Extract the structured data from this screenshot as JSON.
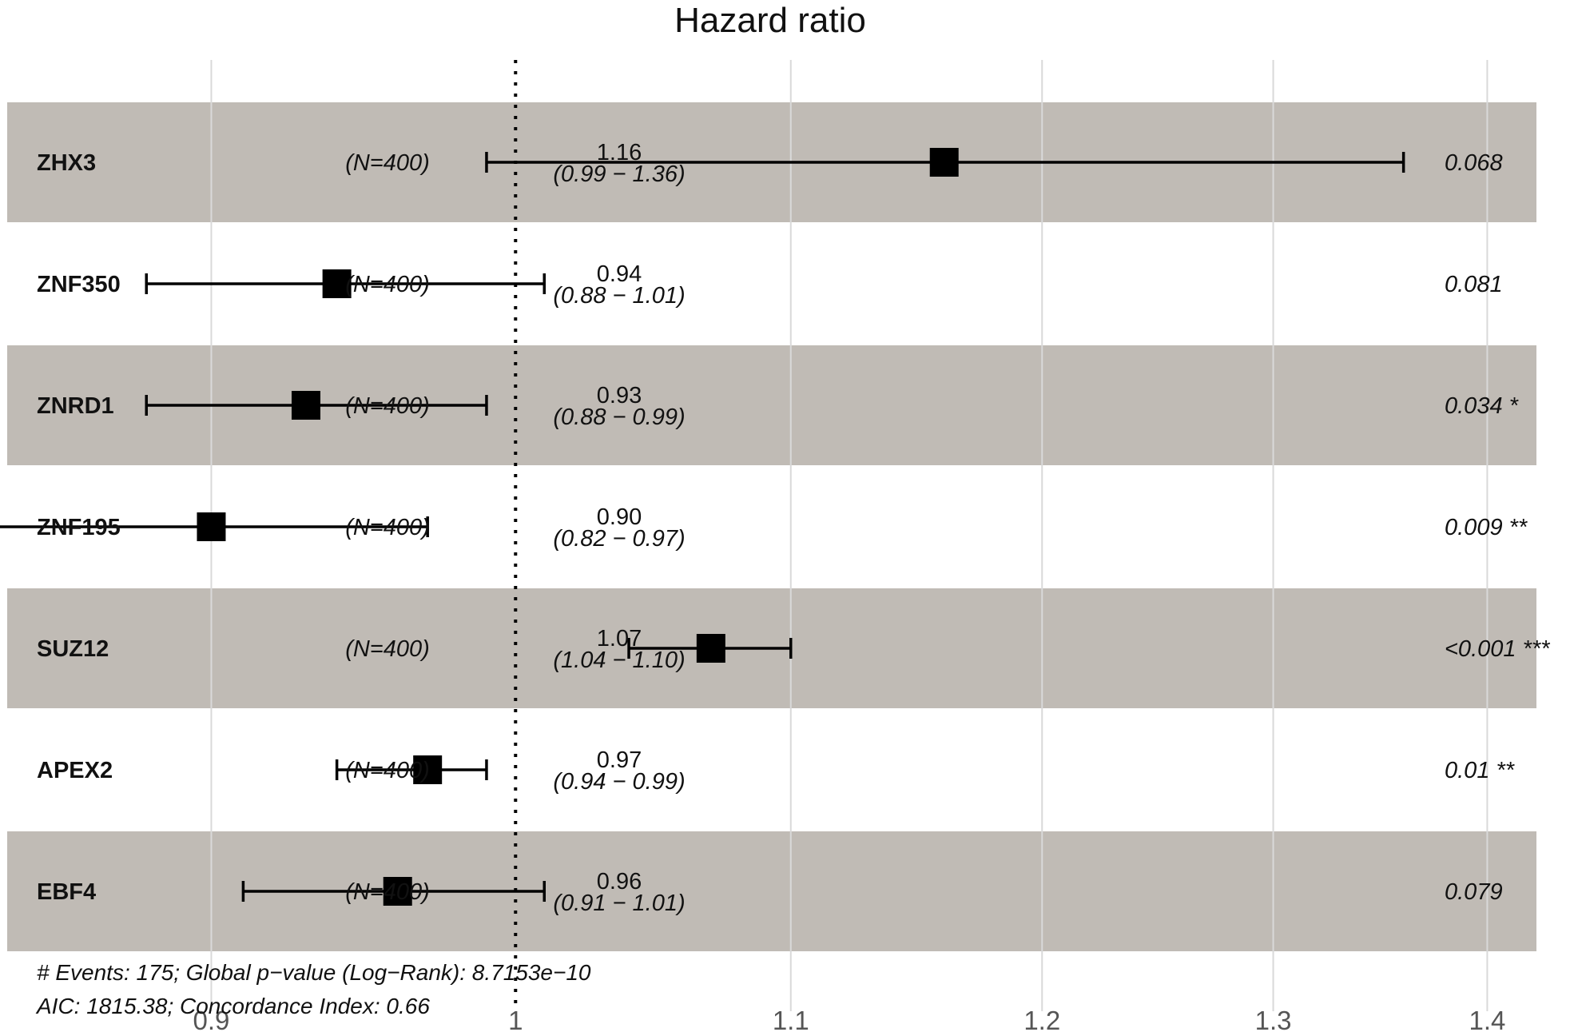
{
  "chart_data": {
    "type": "forest",
    "title": "Hazard ratio",
    "xscale": "log",
    "xlim": [
      0.8365,
      1.4407
    ],
    "reference_line": 1,
    "grid": true,
    "x_ticks": [
      {
        "value": 0.9,
        "label": "0.9"
      },
      {
        "value": 1.0,
        "label": "1"
      },
      {
        "value": 1.1,
        "label": "1.1"
      },
      {
        "value": 1.2,
        "label": "1.2"
      },
      {
        "value": 1.3,
        "label": "1.3"
      },
      {
        "value": 1.4,
        "label": "1.4"
      }
    ],
    "rows": [
      {
        "gene": "ZHX3",
        "n": "(N=400)",
        "hr": 1.16,
        "hr_text": "1.16",
        "lower": 0.99,
        "upper": 1.36,
        "ci_text": "(0.99 − 1.36)",
        "p_text": "0.068",
        "shaded": true
      },
      {
        "gene": "ZNF350",
        "n": "(N=400)",
        "hr": 0.94,
        "hr_text": "0.94",
        "lower": 0.88,
        "upper": 1.01,
        "ci_text": "(0.88 − 1.01)",
        "p_text": "0.081",
        "shaded": false
      },
      {
        "gene": "ZNRD1",
        "n": "(N=400)",
        "hr": 0.93,
        "hr_text": "0.93",
        "lower": 0.88,
        "upper": 0.99,
        "ci_text": "(0.88 − 0.99)",
        "p_text": "0.034 *",
        "shaded": true
      },
      {
        "gene": "ZNF195",
        "n": "(N=400)",
        "hr": 0.9,
        "hr_text": "0.90",
        "lower": 0.82,
        "upper": 0.97,
        "ci_text": "(0.82 − 0.97)",
        "p_text": "0.009 **",
        "shaded": false
      },
      {
        "gene": "SUZ12",
        "n": "(N=400)",
        "hr": 1.07,
        "hr_text": "1.07",
        "lower": 1.04,
        "upper": 1.1,
        "ci_text": "(1.04 − 1.10)",
        "p_text": "<0.001 ***",
        "shaded": true
      },
      {
        "gene": "APEX2",
        "n": "(N=400)",
        "hr": 0.97,
        "hr_text": "0.97",
        "lower": 0.94,
        "upper": 0.99,
        "ci_text": "(0.94 − 0.99)",
        "p_text": "0.01 **",
        "shaded": false
      },
      {
        "gene": "EBF4",
        "n": "(N=400)",
        "hr": 0.96,
        "hr_text": "0.96",
        "lower": 0.91,
        "upper": 1.01,
        "ci_text": "(0.91 − 1.01)",
        "p_text": "0.079",
        "shaded": true
      }
    ],
    "footnote_line1": "# Events: 175; Global p−value (Log−Rank): 8.7153e−10",
    "footnote_line2": "AIC: 1815.38; Concordance Index: 0.66",
    "colors": {
      "band": "#c0bbb5",
      "marker": "#000000",
      "grid": "#d9d9d9",
      "tick_text": "#555555"
    }
  }
}
